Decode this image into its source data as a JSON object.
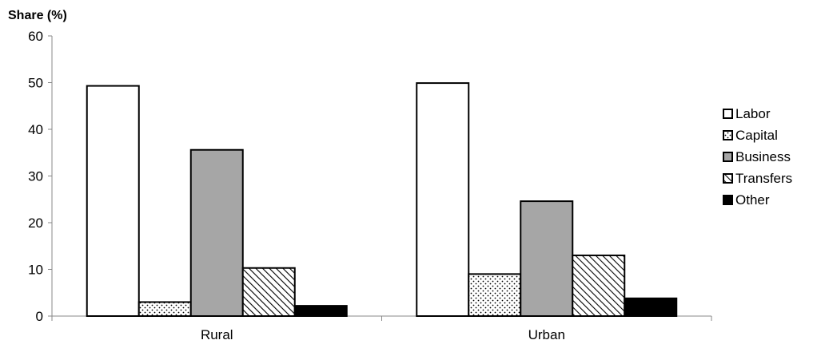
{
  "chart_data": {
    "type": "bar",
    "title": "",
    "xlabel": "",
    "ylabel": "Share (%)",
    "ylim": [
      0,
      60
    ],
    "yticks": [
      0,
      10,
      20,
      30,
      40,
      50,
      60
    ],
    "grid": false,
    "legend_position": "right",
    "categories": [
      "Rural",
      "Urban"
    ],
    "series": [
      {
        "name": "Labor",
        "values": [
          49.3,
          49.9
        ],
        "fill": "#ffffff",
        "pattern": "none"
      },
      {
        "name": "Capital",
        "values": [
          3.0,
          9.0
        ],
        "fill": "#ffffff",
        "pattern": "dots"
      },
      {
        "name": "Business",
        "values": [
          35.6,
          24.6
        ],
        "fill": "#a6a6a6",
        "pattern": "none"
      },
      {
        "name": "Transfers",
        "values": [
          10.3,
          13.0
        ],
        "fill": "#ffffff",
        "pattern": "hatch"
      },
      {
        "name": "Other",
        "values": [
          2.2,
          3.8
        ],
        "fill": "#000000",
        "pattern": "none"
      }
    ]
  }
}
